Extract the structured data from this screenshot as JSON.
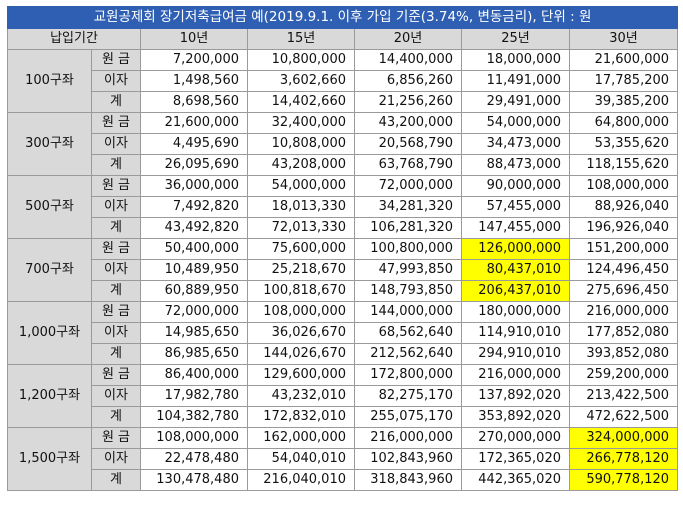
{
  "title": "교원공제회 장기저축급여금 예(2019.9.1. 이후 가입 기준(3.74%, 변동금리), 단위 : 원",
  "header": {
    "period_label": "납입기간",
    "periods": [
      "10년",
      "15년",
      "20년",
      "25년",
      "30년"
    ]
  },
  "row_labels": [
    "원 금",
    "이자",
    "계"
  ],
  "groups": [
    {
      "name": "100구좌",
      "rows": [
        [
          "7,200,000",
          "10,800,000",
          "14,400,000",
          "18,000,000",
          "21,600,000"
        ],
        [
          "1,498,560",
          "3,602,660",
          "6,856,260",
          "11,491,000",
          "17,785,200"
        ],
        [
          "8,698,560",
          "14,402,660",
          "21,256,260",
          "29,491,000",
          "39,385,200"
        ]
      ]
    },
    {
      "name": "300구좌",
      "rows": [
        [
          "21,600,000",
          "32,400,000",
          "43,200,000",
          "54,000,000",
          "64,800,000"
        ],
        [
          "4,495,690",
          "10,808,000",
          "20,568,790",
          "34,473,000",
          "53,355,620"
        ],
        [
          "26,095,690",
          "43,208,000",
          "63,768,790",
          "88,473,000",
          "118,155,620"
        ]
      ]
    },
    {
      "name": "500구좌",
      "rows": [
        [
          "36,000,000",
          "54,000,000",
          "72,000,000",
          "90,000,000",
          "108,000,000"
        ],
        [
          "7,492,820",
          "18,013,330",
          "34,281,320",
          "57,455,000",
          "88,926,040"
        ],
        [
          "43,492,820",
          "72,013,330",
          "106,281,320",
          "147,455,000",
          "196,926,040"
        ]
      ]
    },
    {
      "name": "700구좌",
      "rows": [
        [
          "50,400,000",
          "75,600,000",
          "100,800,000",
          "126,000,000",
          "151,200,000"
        ],
        [
          "10,489,950",
          "25,218,670",
          "47,993,850",
          "80,437,010",
          "124,496,450"
        ],
        [
          "60,889,950",
          "100,818,670",
          "148,793,850",
          "206,437,010",
          "275,696,450"
        ]
      ]
    },
    {
      "name": "1,000구좌",
      "rows": [
        [
          "72,000,000",
          "108,000,000",
          "144,000,000",
          "180,000,000",
          "216,000,000"
        ],
        [
          "14,985,650",
          "36,026,670",
          "68,562,640",
          "114,910,010",
          "177,852,080"
        ],
        [
          "86,985,650",
          "144,026,670",
          "212,562,640",
          "294,910,010",
          "393,852,080"
        ]
      ]
    },
    {
      "name": "1,200구좌",
      "rows": [
        [
          "86,400,000",
          "129,600,000",
          "172,800,000",
          "216,000,000",
          "259,200,000"
        ],
        [
          "17,982,780",
          "43,232,010",
          "82,275,170",
          "137,892,020",
          "213,422,500"
        ],
        [
          "104,382,780",
          "172,832,010",
          "255,075,170",
          "353,892,020",
          "472,622,500"
        ]
      ]
    },
    {
      "name": "1,500구좌",
      "rows": [
        [
          "108,000,000",
          "162,000,000",
          "216,000,000",
          "270,000,000",
          "324,000,000"
        ],
        [
          "22,478,480",
          "54,040,010",
          "102,843,960",
          "172,365,020",
          "266,778,120"
        ],
        [
          "130,478,480",
          "216,040,010",
          "318,843,960",
          "442,365,020",
          "590,778,120"
        ]
      ]
    }
  ],
  "highlight_color": "#ffff00",
  "highlights": [
    {
      "group": 3,
      "col": 3
    },
    {
      "group": 6,
      "col": 4
    }
  ]
}
